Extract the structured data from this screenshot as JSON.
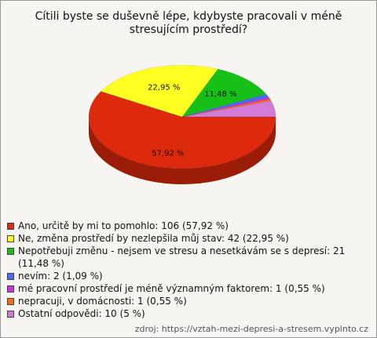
{
  "chart_data": {
    "type": "pie3d",
    "title": "Cítili byste se duševně lépe, kdybyste pracovali v méně stresujícím prostředí?",
    "categories": [
      "Ano, určitě by mi to pomohlo: 106 (57,92 %)",
      "Ne, změna prostředí by nezlepšila můj stav: 42 (22,95 %)",
      "Nepotřebuji změnu - nejsem ve stresu a nesetkávám se s depresí: 21 (11,48 %)",
      "nevím: 2 (1,09 %)",
      "mé pracovní prostředí je méně významným faktorem: 1 (0,55 %)",
      "nepracuji, v domácnosti: 1 (0,55 %)",
      "Ostatní odpovědi: 10 (5 %)"
    ],
    "values": [
      57.92,
      22.95,
      11.48,
      1.09,
      0.55,
      0.55,
      5
    ],
    "value_labels": [
      "57,92 %",
      "22,95 %",
      "11,48 %",
      null,
      null,
      null,
      null
    ],
    "colors": [
      "#dd2a0c",
      "#ffff22",
      "#16c016",
      "#4a6cf0",
      "#d030d8",
      "#ff6a10",
      "#d27ad8"
    ],
    "source": "zdroj: https://vztah-mezi-depresi-a-stresem.vyplnto.cz"
  }
}
